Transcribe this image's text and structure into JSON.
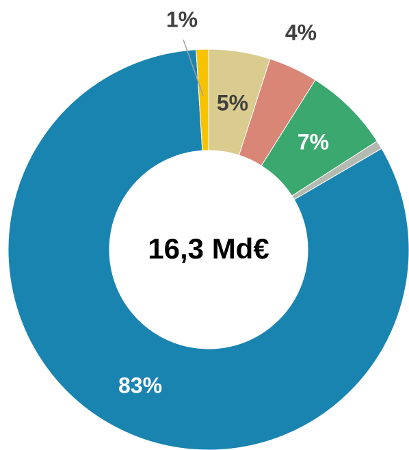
{
  "chart_data": {
    "type": "donut",
    "center_label": "16,3 Md€",
    "series": [
      {
        "color": "#d9cc8e",
        "values": [
          5
        ],
        "value_labels": [
          "5%"
        ]
      },
      {
        "color": "#d98676",
        "values": [
          4
        ],
        "value_labels": [
          "4%"
        ]
      },
      {
        "color": "#3ba86f",
        "values": [
          7
        ],
        "value_labels": [
          "7%"
        ]
      },
      {
        "color": "#b5bab1",
        "values": [
          0.7
        ],
        "value_labels": [
          null
        ]
      },
      {
        "color": "#1a84b1",
        "values": [
          83
        ],
        "value_labels": [
          "83%"
        ]
      },
      {
        "color": "#f7c300",
        "values": [
          1
        ],
        "value_labels": [
          "1%"
        ]
      }
    ]
  }
}
